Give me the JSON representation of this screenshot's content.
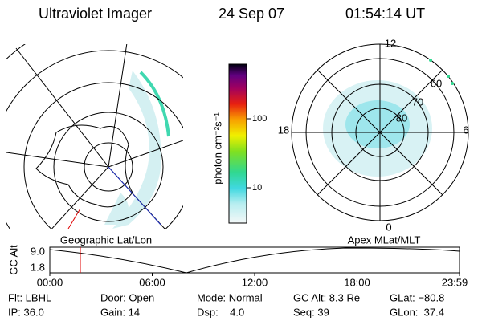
{
  "header": {
    "instrument": "Ultraviolet Imager",
    "date": "24 Sep 07",
    "time": "01:54:14 UT"
  },
  "colorbar": {
    "label": "photon cm⁻²s⁻¹",
    "ticks": [
      "100",
      "10"
    ]
  },
  "polar_plot": {
    "mlt_labels": [
      "12",
      "18",
      "6",
      "0"
    ],
    "mlat_labels": [
      "60",
      "70",
      "80"
    ]
  },
  "panel_labels": {
    "left": "Geographic Lat/Lon",
    "right": "Apex MLat/MLT"
  },
  "altitude_plot": {
    "axis_label": "GC Alt",
    "yticks": [
      "9.0",
      "1.8"
    ],
    "xticks": [
      "00:00",
      "06:00",
      "12:00",
      "18:00",
      "23:59"
    ]
  },
  "info": [
    [
      "Flt: LBHL",
      "Door: Open",
      "Mode: Normal",
      "GC Alt: 8.3 Re",
      "GLat: −80.8"
    ],
    [
      "IP: 36.0",
      "Gain: 14",
      "Dsp:    4.0",
      "Seq: 39",
      "GLon:  37.4"
    ]
  ]
}
